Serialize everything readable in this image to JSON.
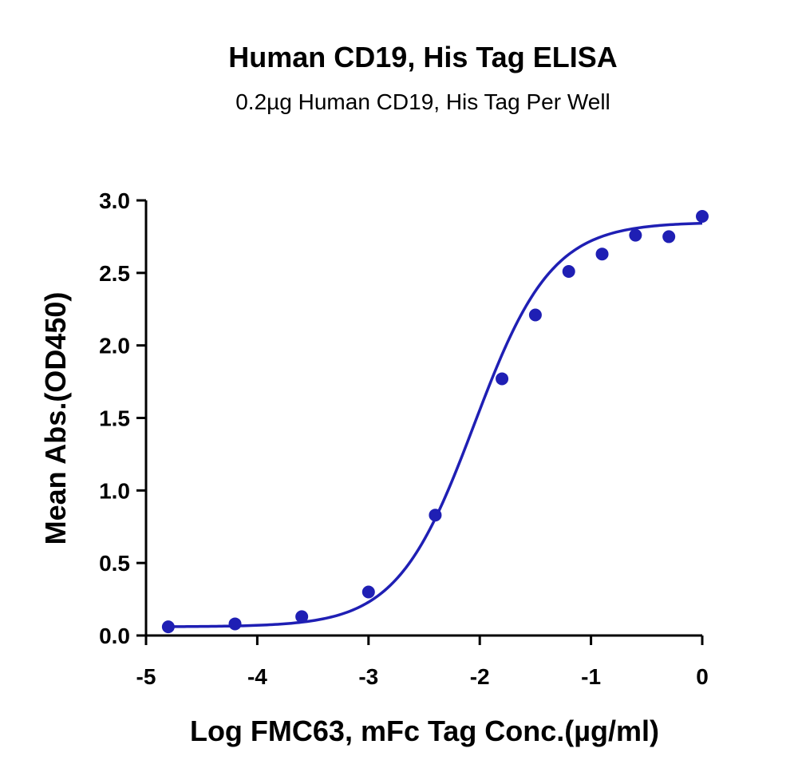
{
  "chart_data": {
    "type": "scatter",
    "title": "Human CD19, His Tag ELISA",
    "subtitle": "0.2µg Human CD19, His Tag Per Well",
    "xlabel": "Log FMC63, mFc Tag Conc.(µg/ml)",
    "ylabel": "Mean Abs.(OD450)",
    "xlim": [
      -5,
      0
    ],
    "ylim": [
      0,
      3.0
    ],
    "xticks": [
      -5,
      -4,
      -3,
      -2,
      -1,
      0
    ],
    "xtick_labels": [
      "-5",
      "-4",
      "-3",
      "-2",
      "-1",
      "0"
    ],
    "yticks": [
      0,
      0.5,
      1.0,
      1.5,
      2.0,
      2.5,
      3.0
    ],
    "ytick_labels": [
      "0.0",
      "0.5",
      "1.0",
      "1.5",
      "2.0",
      "2.5",
      "3.0"
    ],
    "grid": false,
    "colors": {
      "series": "#1f1fb4",
      "axis": "#000000"
    },
    "series": [
      {
        "x": [
          -4.8,
          -4.2,
          -3.6,
          -3.0,
          -2.4,
          -1.8,
          -1.5,
          -1.2,
          -0.9,
          -0.6,
          -0.3,
          0.0
        ],
        "y": [
          0.06,
          0.08,
          0.13,
          0.3,
          0.83,
          1.77,
          2.21,
          2.51,
          2.63,
          2.76,
          2.75,
          2.89
        ],
        "fit": {
          "model": "4PL",
          "bottom": 0.06,
          "top": 2.85,
          "log_ec50": -2.05,
          "hill": 1.25
        }
      }
    ]
  }
}
